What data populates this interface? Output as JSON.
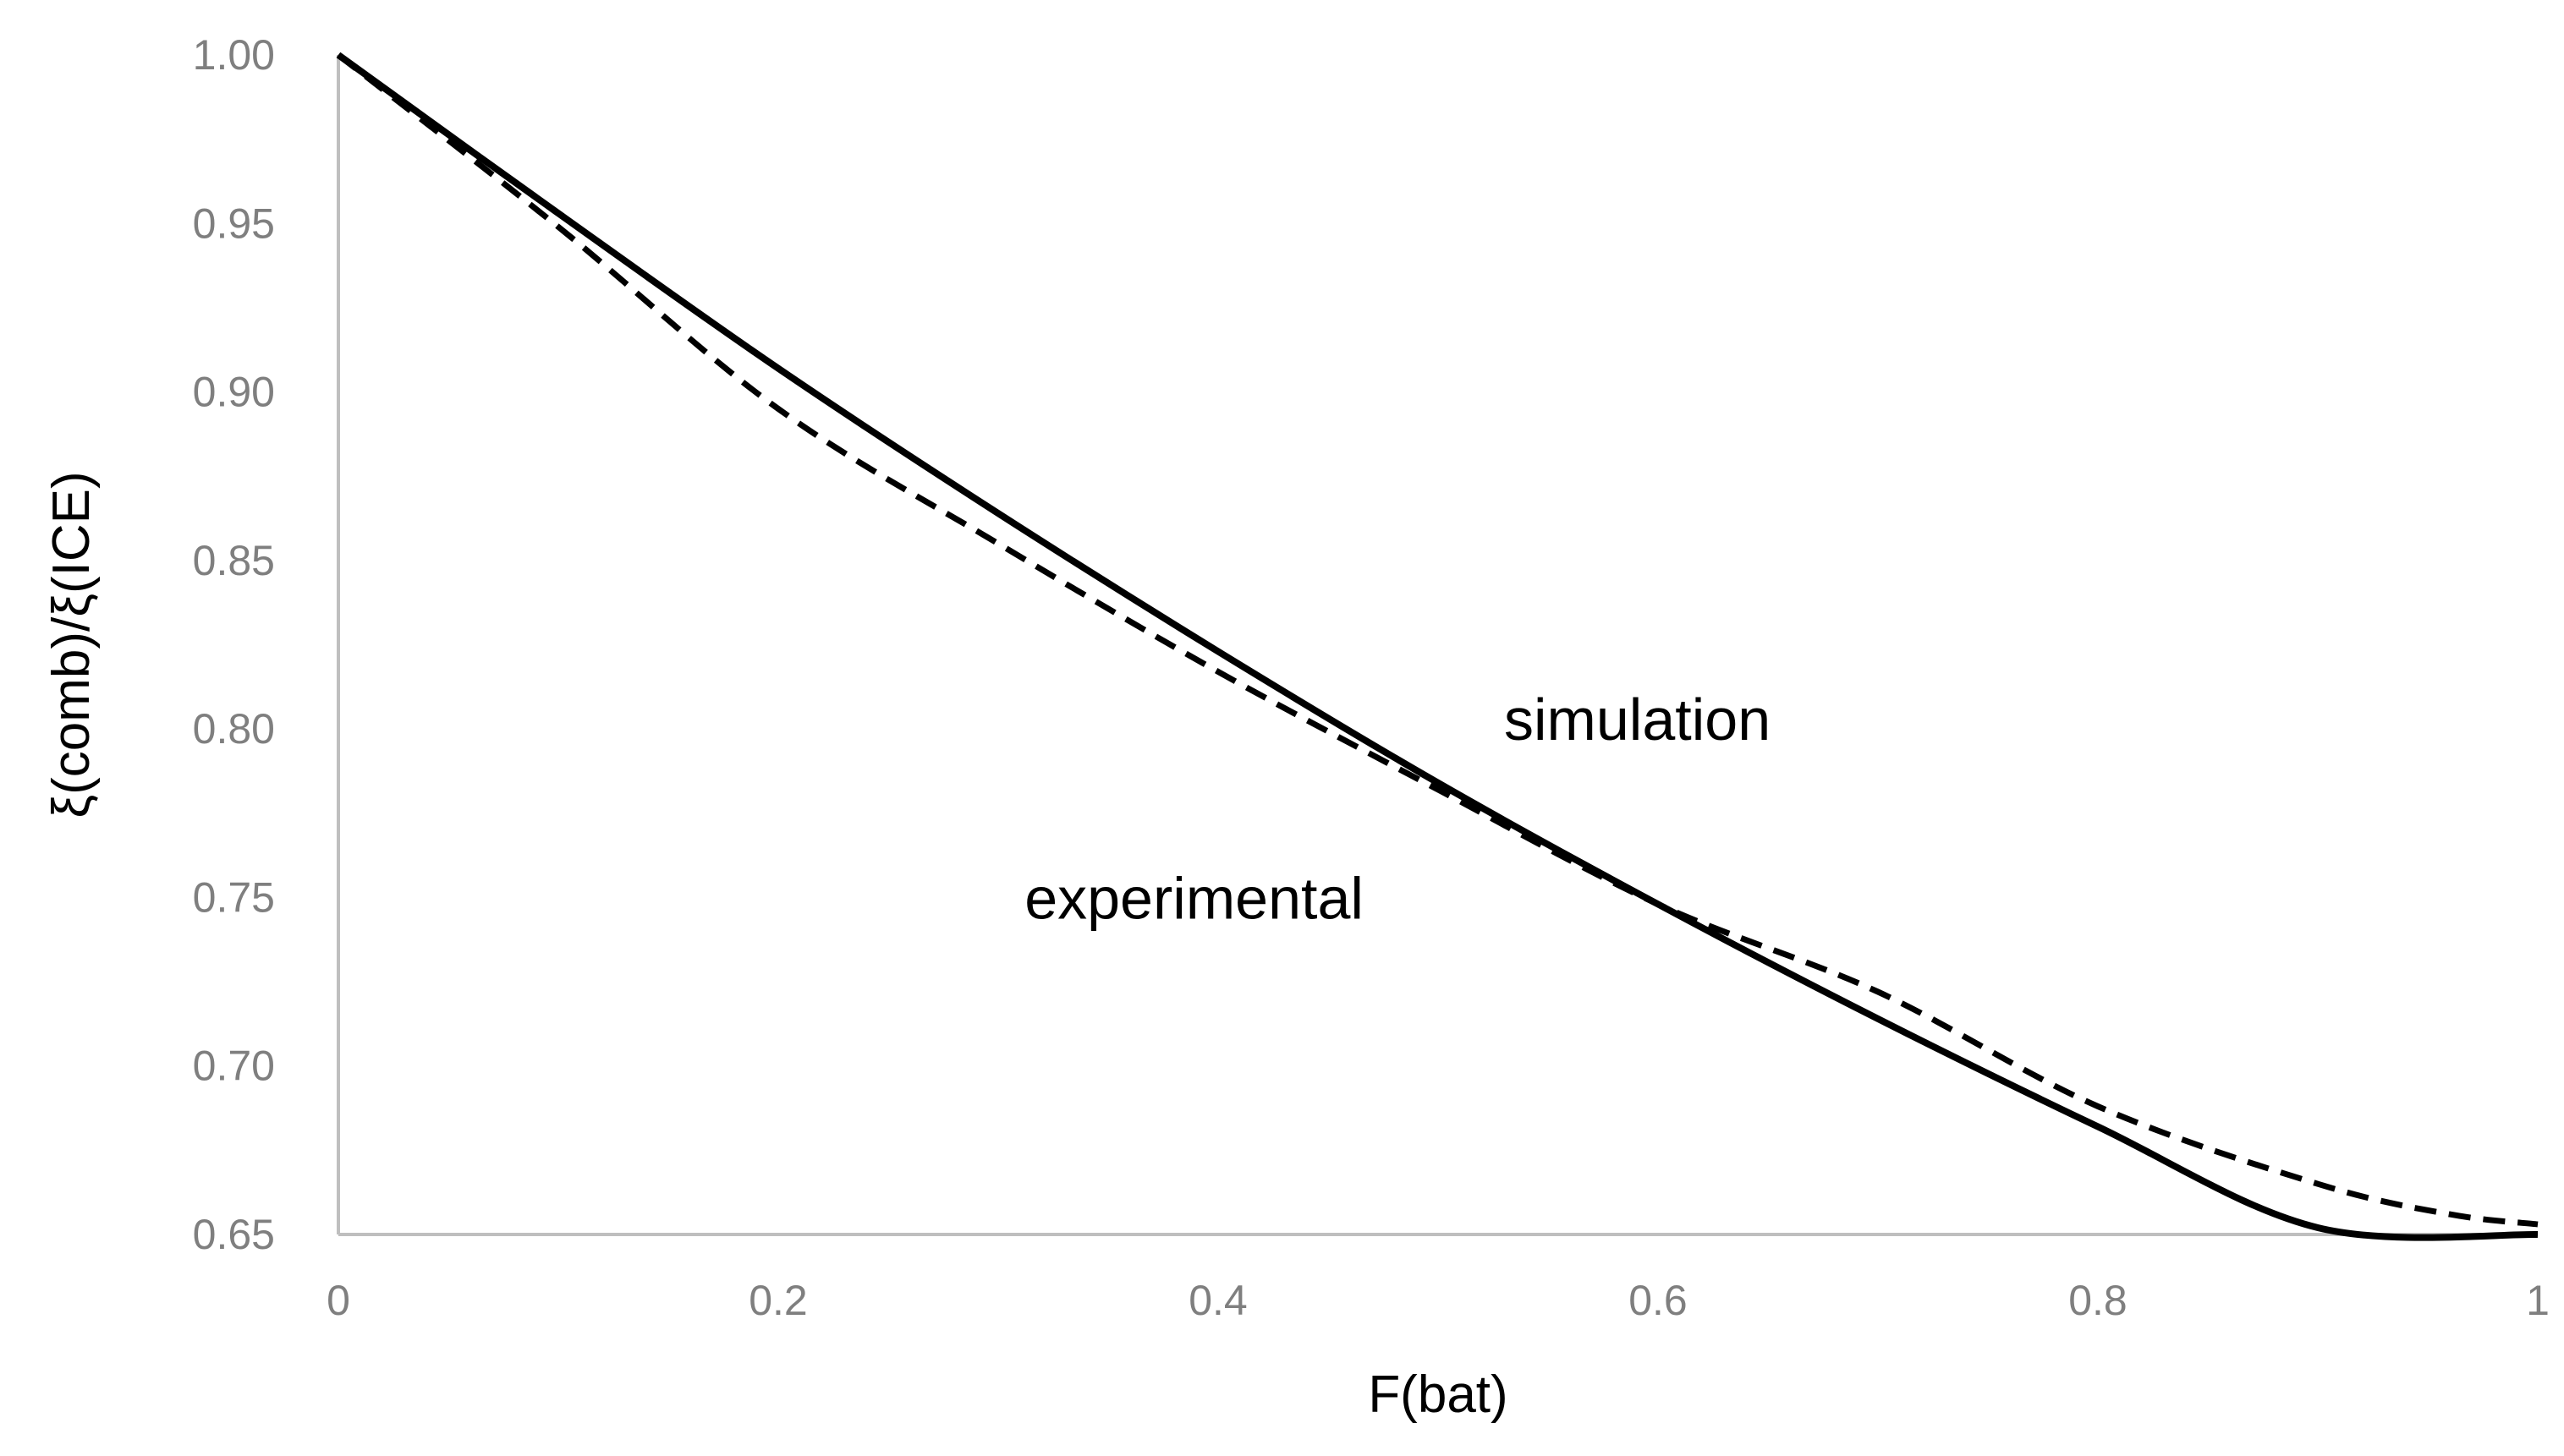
{
  "chart_data": {
    "type": "line",
    "title": "",
    "xlabel": "F(bat)",
    "ylabel": "ξ(comb)/ξ(ICE)",
    "xlim": [
      0,
      1
    ],
    "ylim": [
      0.65,
      1.0
    ],
    "x_ticks": [
      "0",
      "0.2",
      "0.4",
      "0.6",
      "0.8",
      "1"
    ],
    "y_ticks": [
      "0.65",
      "0.70",
      "0.75",
      "0.80",
      "0.85",
      "0.90",
      "0.95",
      "1.00"
    ],
    "grid": false,
    "legend": "none",
    "colors": {
      "line": "#000000",
      "axis": "#bfbfbf",
      "tick_text": "#7f7f7f"
    },
    "series": [
      {
        "name": "simulation",
        "style": "solid",
        "x": [
          0,
          0.1,
          0.2,
          0.3,
          0.4,
          0.5,
          0.6,
          0.7,
          0.8,
          0.9,
          1.0
        ],
        "y": [
          1.0,
          0.953,
          0.907,
          0.864,
          0.823,
          0.784,
          0.748,
          0.714,
          0.682,
          0.652,
          0.65
        ]
      },
      {
        "name": "experimental",
        "style": "dashed",
        "x": [
          0,
          0.1,
          0.2,
          0.3,
          0.4,
          0.5,
          0.6,
          0.7,
          0.8,
          0.9,
          0.96,
          1.0
        ],
        "y": [
          1.0,
          0.949,
          0.895,
          0.855,
          0.817,
          0.782,
          0.748,
          0.722,
          0.688,
          0.665,
          0.656,
          0.653
        ]
      }
    ],
    "annotations": [
      {
        "text": "simulation",
        "x": 0.53,
        "y": 0.803
      },
      {
        "text": "experimental",
        "x": 0.312,
        "y": 0.75
      }
    ]
  }
}
